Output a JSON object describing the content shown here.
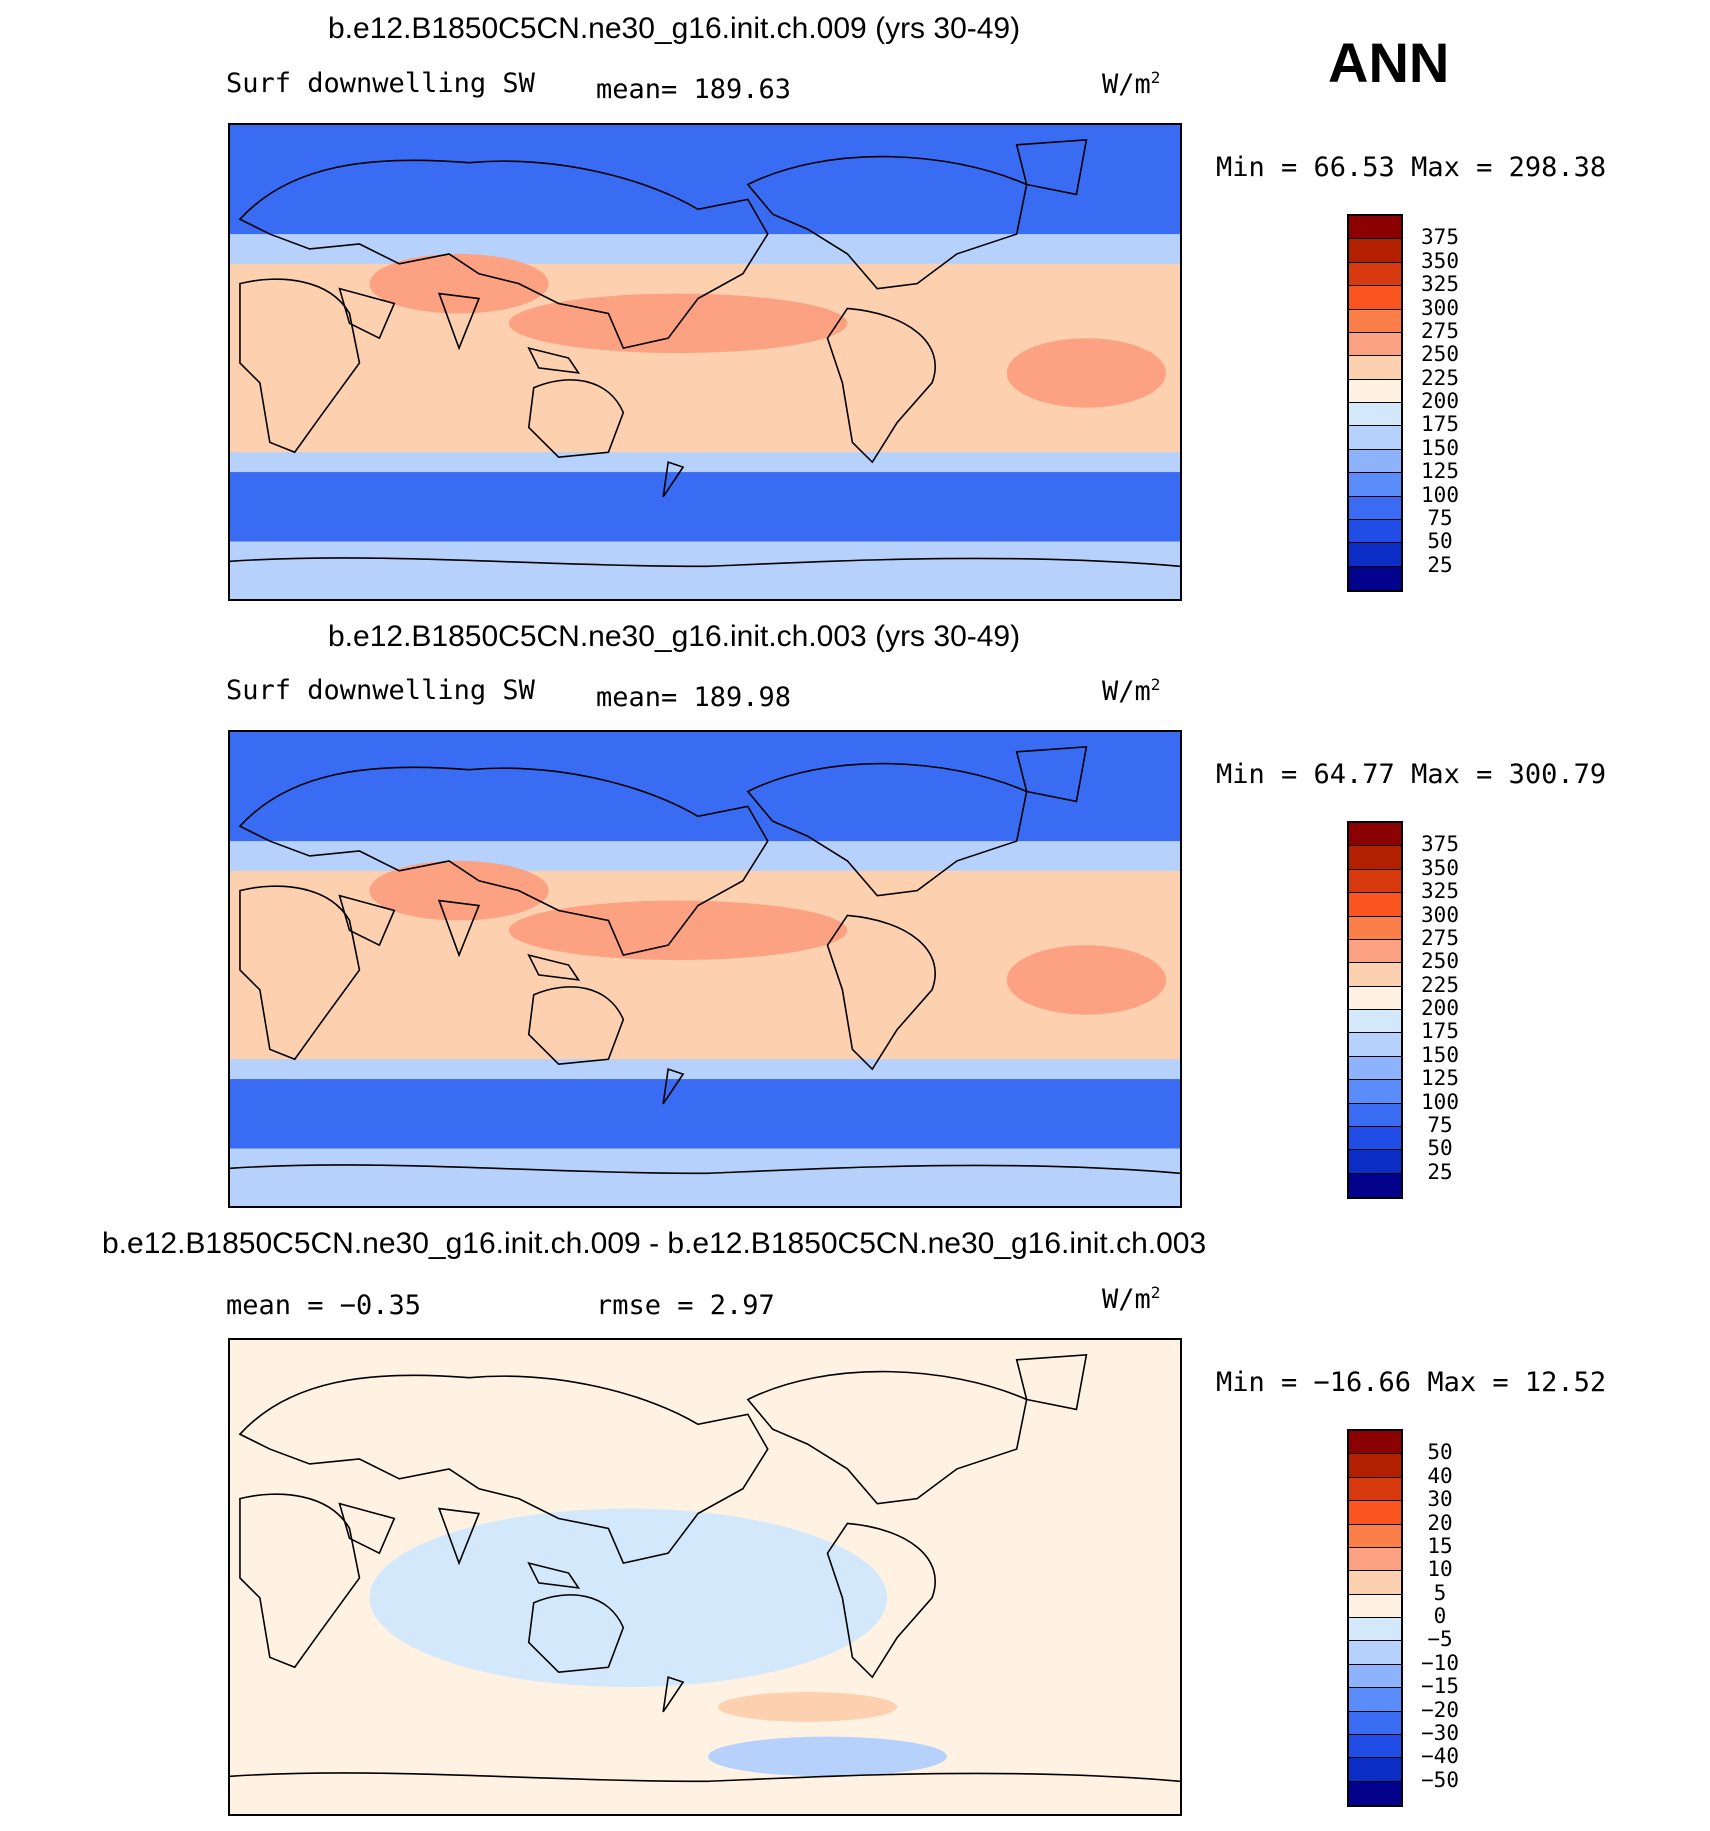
{
  "season": "ANN",
  "panels": [
    {
      "title": "b.e12.B1850C5CN.ne30_g16.init.ch.009 (yrs 30-49)",
      "variable": "Surf downwelling SW",
      "stat": "mean=  189.63",
      "units": "W/m",
      "units_sup": "2",
      "minmax": "Min =   66.53 Max =  298.38",
      "colorbar": {
        "labels": [
          "375",
          "350",
          "325",
          "300",
          "275",
          "250",
          "225",
          "200",
          "175",
          "150",
          "125",
          "100",
          "75",
          "50",
          "25"
        ],
        "colors": [
          "#8b0000",
          "#b22000",
          "#d63a0e",
          "#fa5420",
          "#fc7e48",
          "#fca181",
          "#fdd0b0",
          "#fff2e2",
          "#d4e8fb",
          "#b6d1fb",
          "#8db3fc",
          "#5b8dfa",
          "#3a6cf3",
          "#1f4de5",
          "#0c2ec6",
          "#02028c"
        ]
      },
      "map_palette": {
        "low": "#3a6cf3",
        "mid": "#b6d1fb",
        "high": "#fdd0b0",
        "peak": "#fca181"
      }
    },
    {
      "title": "b.e12.B1850C5CN.ne30_g16.init.ch.003 (yrs 30-49)",
      "variable": "Surf downwelling SW",
      "stat": "mean=  189.98",
      "units": "W/m",
      "units_sup": "2",
      "minmax": "Min =   64.77 Max =  300.79",
      "colorbar": {
        "labels": [
          "375",
          "350",
          "325",
          "300",
          "275",
          "250",
          "225",
          "200",
          "175",
          "150",
          "125",
          "100",
          "75",
          "50",
          "25"
        ],
        "colors": [
          "#8b0000",
          "#b22000",
          "#d63a0e",
          "#fa5420",
          "#fc7e48",
          "#fca181",
          "#fdd0b0",
          "#fff2e2",
          "#d4e8fb",
          "#b6d1fb",
          "#8db3fc",
          "#5b8dfa",
          "#3a6cf3",
          "#1f4de5",
          "#0c2ec6",
          "#02028c"
        ]
      },
      "map_palette": {
        "low": "#3a6cf3",
        "mid": "#b6d1fb",
        "high": "#fdd0b0",
        "peak": "#fca181"
      }
    },
    {
      "title": "b.e12.B1850C5CN.ne30_g16.init.ch.009 - b.e12.B1850C5CN.ne30_g16.init.ch.003",
      "stat_left": "mean =   −0.35",
      "stat_right": "rmse =    2.97",
      "units": "W/m",
      "units_sup": "2",
      "minmax": "Min = −16.66 Max =   12.52",
      "colorbar": {
        "labels": [
          "50",
          "40",
          "30",
          "20",
          "15",
          "10",
          "5",
          "0",
          "−5",
          "−10",
          "−15",
          "−20",
          "−30",
          "−40",
          "−50"
        ],
        "colors": [
          "#8b0000",
          "#b22000",
          "#d63a0e",
          "#fa5420",
          "#fc7e48",
          "#fca181",
          "#fdd0b0",
          "#fff2e2",
          "#d4e8fb",
          "#b6d1fb",
          "#8db3fc",
          "#5b8dfa",
          "#3a6cf3",
          "#1f4de5",
          "#0c2ec6",
          "#02028c"
        ]
      },
      "map_palette": {
        "low": "#d4e8fb",
        "mid": "#fff2e2",
        "high": "#fdd0b0",
        "peak": "#b6d1fb"
      }
    }
  ]
}
